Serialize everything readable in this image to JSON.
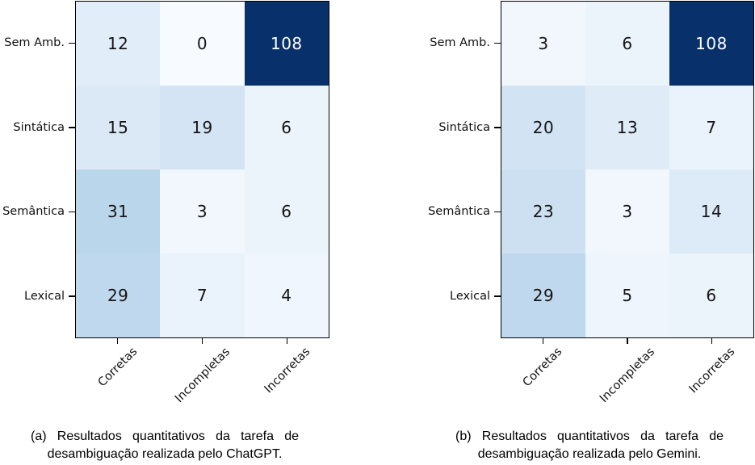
{
  "figure": {
    "background": "#ffffff",
    "colormap_name": "Blues",
    "colormap_stops": [
      "#f7fbff",
      "#deebf7",
      "#c6dbef",
      "#9ecae1",
      "#6baed6",
      "#4292c6",
      "#2171b5",
      "#08519c",
      "#08306b"
    ],
    "axis_color": "#000000",
    "cell_text_dark": "#151515",
    "cell_text_light": "#ffffff"
  },
  "chart_data": [
    {
      "type": "heatmap",
      "model": "ChatGPT",
      "rows": [
        "Sem Amb.",
        "Sintática",
        "Semântica",
        "Lexical"
      ],
      "columns": [
        "Corretas",
        "Incompletas",
        "Incorretas"
      ],
      "values": [
        [
          12,
          0,
          108
        ],
        [
          15,
          19,
          6
        ],
        [
          31,
          3,
          6
        ],
        [
          29,
          7,
          4
        ]
      ],
      "vmin": 0,
      "vmax": 108,
      "legend": "none",
      "grid": false,
      "caption_lines": [
        "(a) Resultados quantitativos da tarefa de",
        "desambiguação realizada pelo ChatGPT."
      ]
    },
    {
      "type": "heatmap",
      "model": "Gemini",
      "rows": [
        "Sem Amb.",
        "Sintática",
        "Semântica",
        "Lexical"
      ],
      "columns": [
        "Corretas",
        "Incompletas",
        "Incorretas"
      ],
      "values": [
        [
          3,
          6,
          108
        ],
        [
          20,
          13,
          7
        ],
        [
          23,
          3,
          14
        ],
        [
          29,
          5,
          6
        ]
      ],
      "vmin": 0,
      "vmax": 108,
      "legend": "none",
      "grid": false,
      "caption_lines": [
        "(b) Resultados quantitativos da tarefa de",
        "desambiguação realizada pelo Gemini."
      ]
    }
  ]
}
